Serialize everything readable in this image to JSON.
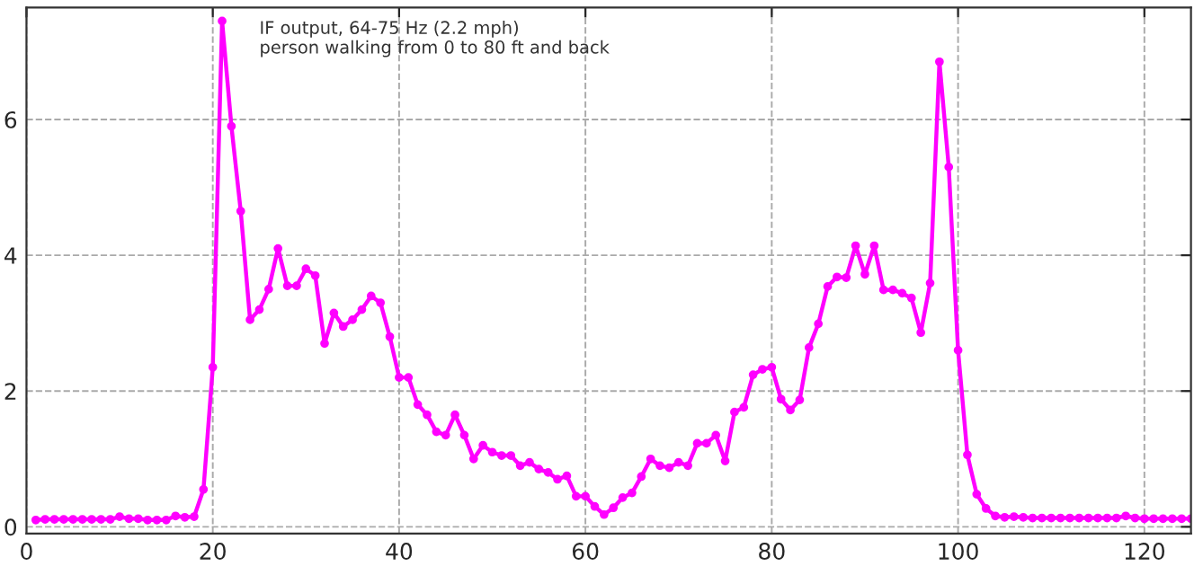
{
  "chart_data": {
    "type": "line",
    "annotations": [
      "IF output, 64-75 Hz (2.2 mph)\nperson walking from 0 to 80 ft and back"
    ],
    "x": [
      1,
      2,
      3,
      4,
      5,
      6,
      7,
      8,
      9,
      10,
      11,
      12,
      13,
      14,
      15,
      16,
      17,
      18,
      19,
      20,
      21,
      22,
      23,
      24,
      25,
      26,
      27,
      28,
      29,
      30,
      31,
      32,
      33,
      34,
      35,
      36,
      37,
      38,
      39,
      40,
      41,
      42,
      43,
      44,
      45,
      46,
      47,
      48,
      49,
      50,
      51,
      52,
      53,
      54,
      55,
      56,
      57,
      58,
      59,
      60,
      61,
      62,
      63,
      64,
      65,
      66,
      67,
      68,
      69,
      70,
      71,
      72,
      73,
      74,
      75,
      76,
      77,
      78,
      79,
      80,
      81,
      82,
      83,
      84,
      85,
      86,
      87,
      88,
      89,
      90,
      91,
      92,
      93,
      94,
      95,
      96,
      97,
      98,
      99,
      100,
      101,
      102,
      103,
      104,
      105,
      106,
      107,
      108,
      109,
      110,
      111,
      112,
      113,
      114,
      115,
      116,
      117,
      118,
      119,
      120,
      121,
      122,
      123,
      124,
      125
    ],
    "series": [
      {
        "color": "#ff00ff",
        "values": [
          0.1,
          0.11,
          0.11,
          0.11,
          0.11,
          0.11,
          0.11,
          0.11,
          0.11,
          0.15,
          0.12,
          0.12,
          0.1,
          0.1,
          0.1,
          0.16,
          0.14,
          0.15,
          0.55,
          2.35,
          7.45,
          5.9,
          4.65,
          3.05,
          3.2,
          3.5,
          4.1,
          3.55,
          3.55,
          3.8,
          3.7,
          2.7,
          3.15,
          2.95,
          3.05,
          3.2,
          3.4,
          3.3,
          2.8,
          2.2,
          2.2,
          1.8,
          1.65,
          1.4,
          1.35,
          1.65,
          1.35,
          1.0,
          1.2,
          1.1,
          1.05,
          1.05,
          0.9,
          0.95,
          0.85,
          0.8,
          0.7,
          0.75,
          0.45,
          0.45,
          0.3,
          0.18,
          0.28,
          0.43,
          0.5,
          0.74,
          1.0,
          0.9,
          0.87,
          0.95,
          0.9,
          1.23,
          1.23,
          1.35,
          0.97,
          1.69,
          1.76,
          2.24,
          2.32,
          2.35,
          1.88,
          1.72,
          1.87,
          2.64,
          2.99,
          3.54,
          3.68,
          3.67,
          4.14,
          3.72,
          4.14,
          3.49,
          3.49,
          3.44,
          3.37,
          2.86,
          3.59,
          6.85,
          5.3,
          2.6,
          1.06,
          0.48,
          0.27,
          0.16,
          0.14,
          0.15,
          0.14,
          0.13,
          0.13,
          0.13,
          0.13,
          0.13,
          0.13,
          0.13,
          0.13,
          0.13,
          0.13,
          0.16,
          0.13,
          0.12,
          0.12,
          0.12,
          0.12,
          0.12,
          0.12
        ]
      }
    ],
    "xlim": [
      0,
      125
    ],
    "ylim": [
      -0.1,
      7.65
    ],
    "xticks": [
      0,
      20,
      40,
      60,
      80,
      100,
      120
    ],
    "yticks": [
      0,
      2,
      4,
      6
    ],
    "grid": true,
    "marker": "circle",
    "line_style": "solid"
  }
}
